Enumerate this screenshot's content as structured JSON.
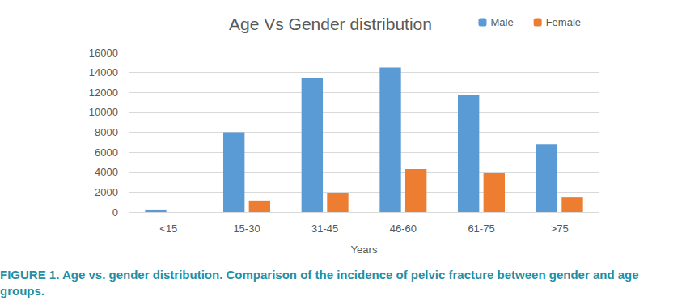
{
  "chart_data": {
    "type": "bar",
    "title": "Age Vs Gender distribution",
    "x_label": "Years",
    "categories": [
      "<15",
      "15-30",
      "31-45",
      "46-60",
      "61-75",
      ">75"
    ],
    "series": [
      {
        "name": "Male",
        "color": "#5b9bd5",
        "values": [
          250,
          8000,
          13450,
          14500,
          11700,
          6800
        ]
      },
      {
        "name": "Female",
        "color": "#ed7d31",
        "values": [
          0,
          1150,
          1950,
          4300,
          3900,
          1450
        ]
      }
    ],
    "ylim": [
      0,
      16000
    ],
    "yticks": [
      0,
      2000,
      4000,
      6000,
      8000,
      10000,
      12000,
      14000,
      16000
    ],
    "grid": true,
    "legend": "top-right"
  },
  "caption": "FIGURE 1. Age vs. gender distribution. Comparison of the incidence of pelvic fracture between gender and age groups."
}
